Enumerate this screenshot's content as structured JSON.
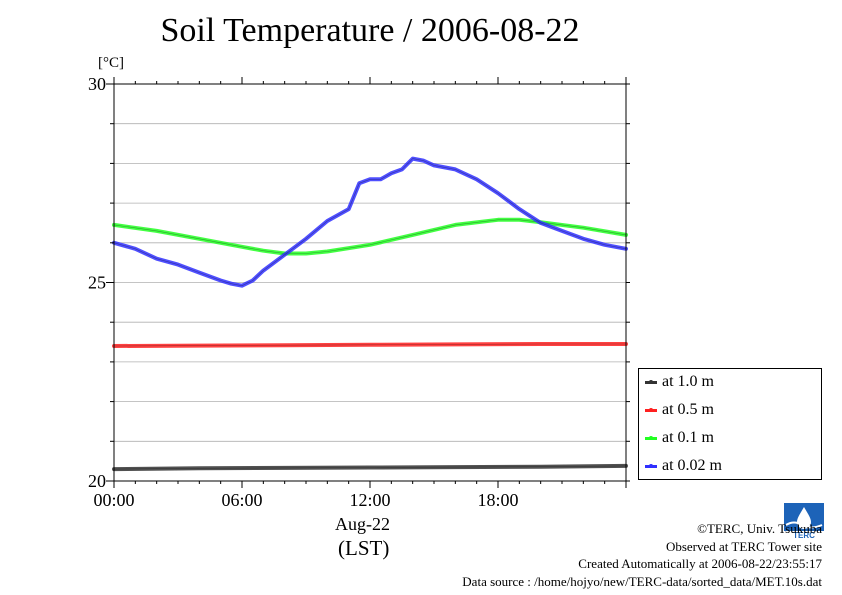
{
  "chart_data": {
    "type": "line",
    "title": "Soil Temperature / 2006-08-22",
    "ylabel": "[°C]",
    "xlabel": "Aug-22",
    "xlabel2": "(LST)",
    "ylim": [
      20,
      30
    ],
    "xlim": [
      0,
      24
    ],
    "yticks": [
      "30",
      "25",
      "20"
    ],
    "ytick_values": [
      30,
      25,
      20
    ],
    "xticks": [
      "00:00",
      "06:00",
      "12:00",
      "18:00"
    ],
    "xtick_values": [
      0,
      6,
      12,
      18
    ],
    "grid": true,
    "legend_position": "bottom-right",
    "series": [
      {
        "name": "at 1.0 m",
        "color": "#333333",
        "x": [
          0,
          4,
          8,
          12,
          16,
          20,
          24
        ],
        "y": [
          20.3,
          20.32,
          20.33,
          20.34,
          20.35,
          20.36,
          20.38
        ]
      },
      {
        "name": "at 0.5 m",
        "color": "#ff2020",
        "x": [
          0,
          4,
          8,
          12,
          16,
          20,
          24
        ],
        "y": [
          23.4,
          23.41,
          23.42,
          23.43,
          23.44,
          23.45,
          23.45
        ]
      },
      {
        "name": "at 0.1 m",
        "color": "#22ff22",
        "x": [
          0,
          2,
          4,
          6,
          7,
          8,
          9,
          10,
          12,
          14,
          16,
          18,
          19,
          20,
          22,
          24
        ],
        "y": [
          26.45,
          26.3,
          26.1,
          25.9,
          25.8,
          25.73,
          25.73,
          25.78,
          25.95,
          26.2,
          26.45,
          26.58,
          26.58,
          26.52,
          26.38,
          26.2
        ]
      },
      {
        "name": "at 0.02 m",
        "color": "#3030ff",
        "x": [
          0,
          1,
          2,
          3,
          4,
          5,
          5.5,
          6,
          6.5,
          7,
          8,
          9,
          10,
          11,
          11.5,
          12,
          12.5,
          13,
          13.5,
          14,
          14.5,
          15,
          15.5,
          16,
          17,
          18,
          19,
          20,
          21,
          22,
          23,
          24
        ],
        "y": [
          26.0,
          25.85,
          25.6,
          25.45,
          25.25,
          25.05,
          24.97,
          24.92,
          25.05,
          25.3,
          25.7,
          26.1,
          26.55,
          26.85,
          27.5,
          27.6,
          27.6,
          27.75,
          27.85,
          28.12,
          28.07,
          27.95,
          27.9,
          27.85,
          27.6,
          27.25,
          26.85,
          26.5,
          26.3,
          26.1,
          25.95,
          25.85
        ]
      }
    ]
  },
  "footer": {
    "copyright": "©TERC, Univ. Tsukuba",
    "observed": "Observed at TERC Tower site",
    "created": "Created Automatically at 2006-08-22/23:55:17",
    "source": "Data source : /home/hojyo/new/TERC-data/sorted_data/MET.10s.dat",
    "logo_text": "TERC"
  }
}
